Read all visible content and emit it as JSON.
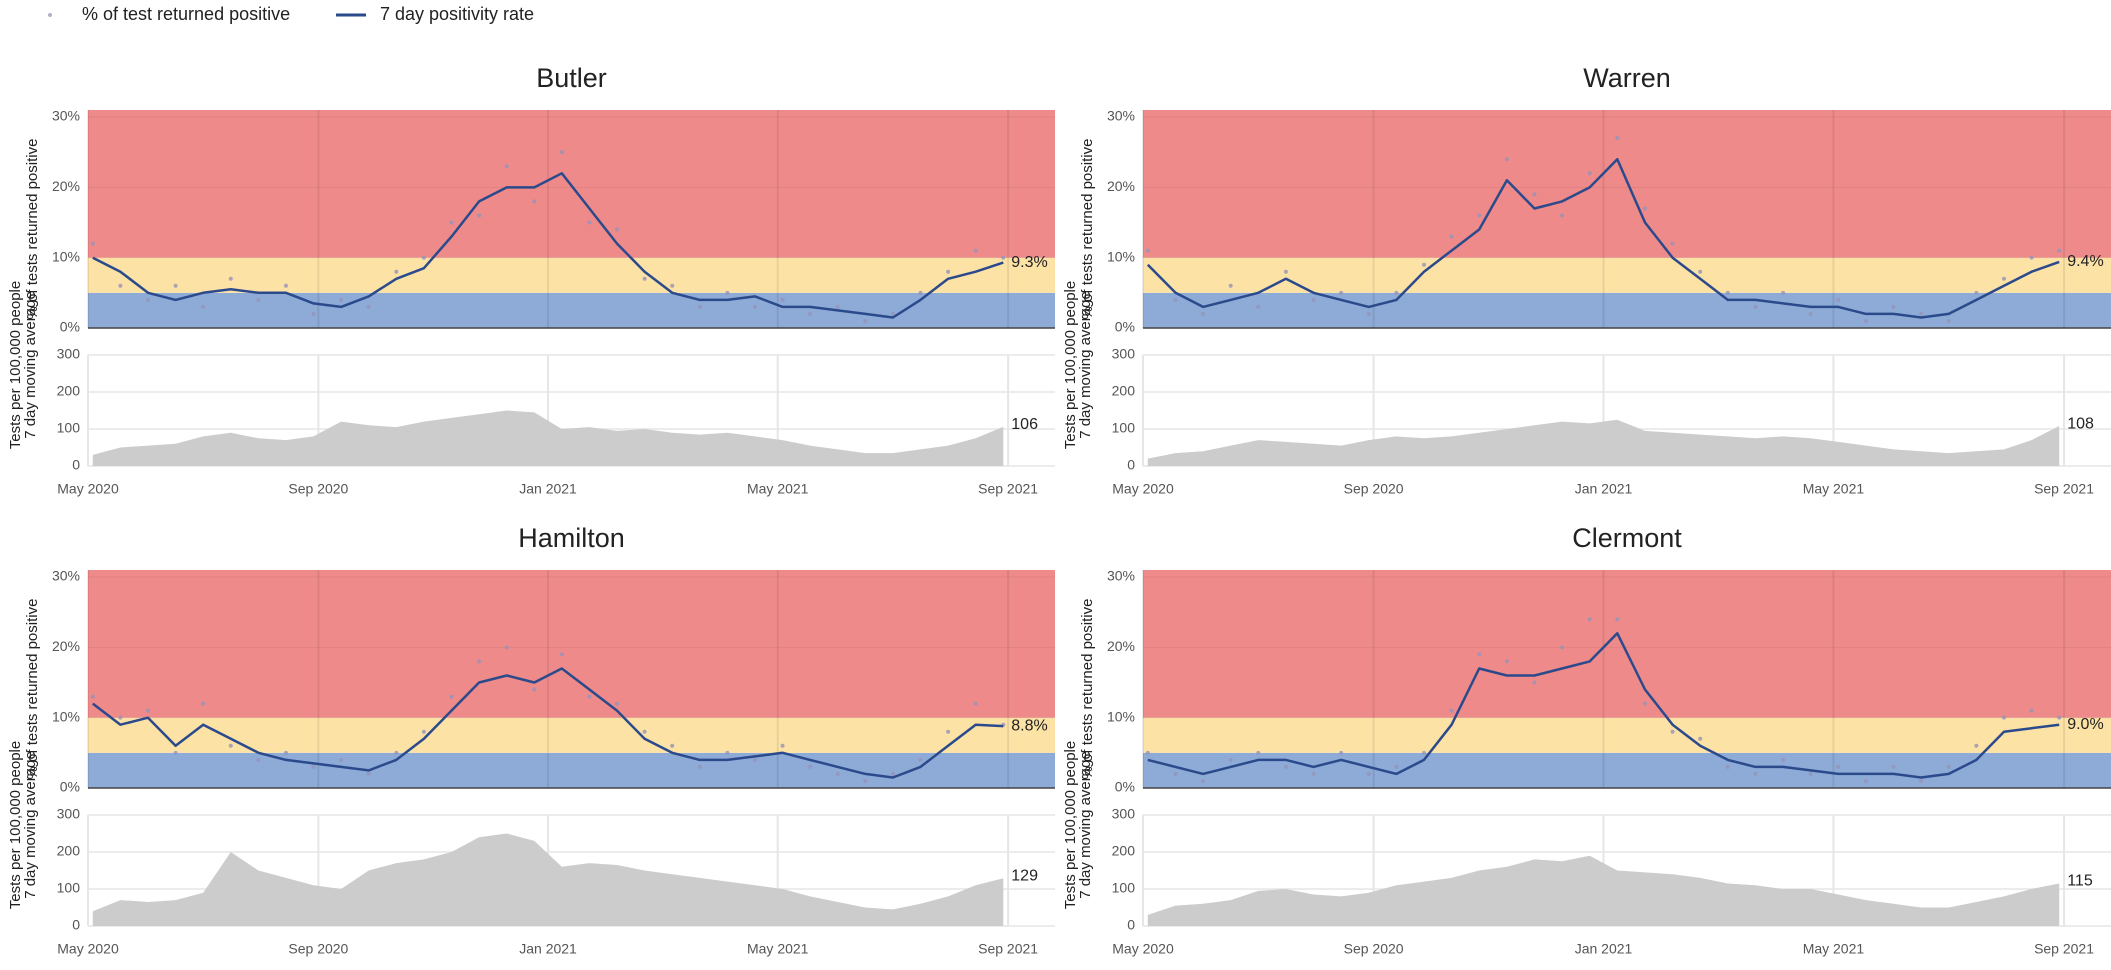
{
  "chart_data": [
    {
      "type": "line",
      "title": "Butler",
      "y_label": "% of tests returned positive",
      "x": [
        2020.34,
        2020.38,
        2020.42,
        2020.46,
        2020.5,
        2020.54,
        2020.58,
        2020.62,
        2020.66,
        2020.7,
        2020.74,
        2020.78,
        2020.82,
        2020.86,
        2020.9,
        2020.94,
        2020.98,
        2021.02,
        2021.06,
        2021.1,
        2021.14,
        2021.18,
        2021.22,
        2021.26,
        2021.3,
        2021.34,
        2021.38,
        2021.42,
        2021.46,
        2021.5,
        2021.54,
        2021.58,
        2021.62,
        2021.66
      ],
      "xlim": [
        2020.333,
        2021.735
      ],
      "xticks": [
        {
          "value": 2020.333,
          "label": "May 2020"
        },
        {
          "value": 2020.667,
          "label": "Sep 2020"
        },
        {
          "value": 2021.0,
          "label": "Jan 2021"
        },
        {
          "value": 2021.333,
          "label": "May 2021"
        },
        {
          "value": 2021.667,
          "label": "Sep 2021"
        }
      ],
      "ylim": [
        0,
        31
      ],
      "yticks": [
        {
          "value": 0,
          "label": "0%"
        },
        {
          "value": 10,
          "label": "10%"
        },
        {
          "value": 20,
          "label": "20%"
        },
        {
          "value": 30,
          "label": "30%"
        }
      ],
      "bands": [
        {
          "from": 0,
          "to": 5,
          "color": "#8eaad6"
        },
        {
          "from": 5,
          "to": 10,
          "color": "#fde2a6"
        },
        {
          "from": 10,
          "to": 31,
          "color": "#ef8a8a"
        }
      ],
      "series": [
        {
          "name": "% of test returned positive",
          "style": "dots",
          "color": "#9494b8",
          "values": [
            12,
            6,
            4,
            6,
            3,
            7,
            4,
            6,
            2,
            4,
            3,
            8,
            10,
            15,
            16,
            23,
            18,
            25,
            15,
            14,
            7,
            6,
            3,
            5,
            3,
            4,
            2,
            3,
            1,
            2,
            5,
            8,
            11,
            10
          ]
        },
        {
          "name": "7 day positivity rate",
          "style": "line",
          "color": "#2b4a8c",
          "values": [
            10,
            8,
            5,
            4,
            5,
            5.5,
            5,
            5,
            3.5,
            3,
            4.5,
            7,
            8.5,
            13,
            18,
            20,
            20,
            22,
            17,
            12,
            8,
            5,
            4,
            4,
            4.5,
            3,
            3,
            2.5,
            2,
            1.5,
            4,
            7,
            8,
            9.3
          ]
        }
      ],
      "end_label": {
        "value": 9.3,
        "label": "9.3%"
      },
      "tests": {
        "label": [
          "Tests per 100,000 people",
          "7 day moving average"
        ],
        "color": "#cccccc",
        "ylim": [
          0,
          300
        ],
        "yticks": [
          0,
          100,
          200,
          300
        ],
        "values": [
          30,
          50,
          55,
          60,
          80,
          90,
          75,
          70,
          80,
          120,
          110,
          105,
          120,
          130,
          140,
          150,
          145,
          100,
          105,
          95,
          100,
          90,
          85,
          90,
          80,
          70,
          55,
          45,
          35,
          35,
          45,
          55,
          75,
          106
        ],
        "end_label": 106
      }
    },
    {
      "type": "line",
      "title": "Warren",
      "y_label": "% of tests returned positive",
      "x": [
        2020.34,
        2020.38,
        2020.42,
        2020.46,
        2020.5,
        2020.54,
        2020.58,
        2020.62,
        2020.66,
        2020.7,
        2020.74,
        2020.78,
        2020.82,
        2020.86,
        2020.9,
        2020.94,
        2020.98,
        2021.02,
        2021.06,
        2021.1,
        2021.14,
        2021.18,
        2021.22,
        2021.26,
        2021.3,
        2021.34,
        2021.38,
        2021.42,
        2021.46,
        2021.5,
        2021.54,
        2021.58,
        2021.62,
        2021.66
      ],
      "xlim": [
        2020.333,
        2021.735
      ],
      "xticks": [
        {
          "value": 2020.333,
          "label": "May 2020"
        },
        {
          "value": 2020.667,
          "label": "Sep 2020"
        },
        {
          "value": 2021.0,
          "label": "Jan 2021"
        },
        {
          "value": 2021.333,
          "label": "May 2021"
        },
        {
          "value": 2021.667,
          "label": "Sep 2021"
        }
      ],
      "ylim": [
        0,
        31
      ],
      "yticks": [
        {
          "value": 0,
          "label": "0%"
        },
        {
          "value": 10,
          "label": "10%"
        },
        {
          "value": 20,
          "label": "20%"
        },
        {
          "value": 30,
          "label": "30%"
        }
      ],
      "bands": [
        {
          "from": 0,
          "to": 5,
          "color": "#8eaad6"
        },
        {
          "from": 5,
          "to": 10,
          "color": "#fde2a6"
        },
        {
          "from": 10,
          "to": 31,
          "color": "#ef8a8a"
        }
      ],
      "series": [
        {
          "style": "dots",
          "color": "#9494b8",
          "values": [
            11,
            4,
            2,
            6,
            3,
            8,
            4,
            5,
            2,
            5,
            9,
            13,
            16,
            24,
            19,
            16,
            22,
            27,
            17,
            12,
            8,
            5,
            3,
            5,
            2,
            4,
            1,
            3,
            2,
            1,
            5,
            7,
            10,
            11
          ]
        },
        {
          "style": "line",
          "color": "#2b4a8c",
          "values": [
            9,
            5,
            3,
            4,
            5,
            7,
            5,
            4,
            3,
            4,
            8,
            11,
            14,
            21,
            17,
            18,
            20,
            24,
            15,
            10,
            7,
            4,
            4,
            3.5,
            3,
            3,
            2,
            2,
            1.5,
            2,
            4,
            6,
            8,
            9.4
          ]
        }
      ],
      "end_label": {
        "value": 9.4,
        "label": "9.4%"
      },
      "tests": {
        "label": [
          "Tests per 100,000 people",
          "7 day moving average"
        ],
        "color": "#cccccc",
        "ylim": [
          0,
          300
        ],
        "yticks": [
          0,
          100,
          200,
          300
        ],
        "values": [
          20,
          35,
          40,
          55,
          70,
          65,
          60,
          55,
          70,
          80,
          75,
          80,
          90,
          100,
          110,
          120,
          115,
          125,
          95,
          90,
          85,
          80,
          75,
          80,
          75,
          65,
          55,
          45,
          40,
          35,
          40,
          45,
          70,
          108
        ],
        "end_label": 108
      }
    },
    {
      "type": "line",
      "title": "Hamilton",
      "y_label": "% of tests returned positive",
      "x": [
        2020.34,
        2020.38,
        2020.42,
        2020.46,
        2020.5,
        2020.54,
        2020.58,
        2020.62,
        2020.66,
        2020.7,
        2020.74,
        2020.78,
        2020.82,
        2020.86,
        2020.9,
        2020.94,
        2020.98,
        2021.02,
        2021.06,
        2021.1,
        2021.14,
        2021.18,
        2021.22,
        2021.26,
        2021.3,
        2021.34,
        2021.38,
        2021.42,
        2021.46,
        2021.5,
        2021.54,
        2021.58,
        2021.62,
        2021.66
      ],
      "xlim": [
        2020.333,
        2021.735
      ],
      "xticks": [
        {
          "value": 2020.333,
          "label": "May 2020"
        },
        {
          "value": 2020.667,
          "label": "Sep 2020"
        },
        {
          "value": 2021.0,
          "label": "Jan 2021"
        },
        {
          "value": 2021.333,
          "label": "May 2021"
        },
        {
          "value": 2021.667,
          "label": "Sep 2021"
        }
      ],
      "ylim": [
        0,
        31
      ],
      "yticks": [
        {
          "value": 0,
          "label": "0%"
        },
        {
          "value": 10,
          "label": "10%"
        },
        {
          "value": 20,
          "label": "20%"
        },
        {
          "value": 30,
          "label": "30%"
        }
      ],
      "bands": [
        {
          "from": 0,
          "to": 5,
          "color": "#8eaad6"
        },
        {
          "from": 5,
          "to": 10,
          "color": "#fde2a6"
        },
        {
          "from": 10,
          "to": 31,
          "color": "#ef8a8a"
        }
      ],
      "series": [
        {
          "style": "dots",
          "color": "#9494b8",
          "values": [
            13,
            10,
            11,
            5,
            12,
            6,
            4,
            5,
            3,
            4,
            2,
            5,
            8,
            13,
            18,
            20,
            14,
            19,
            13,
            12,
            8,
            6,
            3,
            5,
            4,
            6,
            3,
            2,
            1,
            2,
            4,
            8,
            12,
            9
          ]
        },
        {
          "style": "line",
          "color": "#2b4a8c",
          "values": [
            12,
            9,
            10,
            6,
            9,
            7,
            5,
            4,
            3.5,
            3,
            2.5,
            4,
            7,
            11,
            15,
            16,
            15,
            17,
            14,
            11,
            7,
            5,
            4,
            4,
            4.5,
            5,
            4,
            3,
            2,
            1.5,
            3,
            6,
            9,
            8.8
          ]
        }
      ],
      "end_label": {
        "value": 8.8,
        "label": "8.8%"
      },
      "tests": {
        "label": [
          "Tests per 100,000 people",
          "7 day moving average"
        ],
        "color": "#cccccc",
        "ylim": [
          0,
          300
        ],
        "yticks": [
          0,
          100,
          200,
          300
        ],
        "values": [
          40,
          70,
          65,
          70,
          90,
          200,
          150,
          130,
          110,
          100,
          150,
          170,
          180,
          200,
          240,
          250,
          230,
          160,
          170,
          165,
          150,
          140,
          130,
          120,
          110,
          100,
          80,
          65,
          50,
          45,
          60,
          80,
          110,
          129
        ],
        "end_label": 129
      }
    },
    {
      "type": "line",
      "title": "Clermont",
      "y_label": "% of tests returned positive",
      "x": [
        2020.34,
        2020.38,
        2020.42,
        2020.46,
        2020.5,
        2020.54,
        2020.58,
        2020.62,
        2020.66,
        2020.7,
        2020.74,
        2020.78,
        2020.82,
        2020.86,
        2020.9,
        2020.94,
        2020.98,
        2021.02,
        2021.06,
        2021.1,
        2021.14,
        2021.18,
        2021.22,
        2021.26,
        2021.3,
        2021.34,
        2021.38,
        2021.42,
        2021.46,
        2021.5,
        2021.54,
        2021.58,
        2021.62,
        2021.66
      ],
      "xlim": [
        2020.333,
        2021.735
      ],
      "xticks": [
        {
          "value": 2020.333,
          "label": "May 2020"
        },
        {
          "value": 2020.667,
          "label": "Sep 2020"
        },
        {
          "value": 2021.0,
          "label": "Jan 2021"
        },
        {
          "value": 2021.333,
          "label": "May 2021"
        },
        {
          "value": 2021.667,
          "label": "Sep 2021"
        }
      ],
      "ylim": [
        0,
        31
      ],
      "yticks": [
        {
          "value": 0,
          "label": "0%"
        },
        {
          "value": 10,
          "label": "10%"
        },
        {
          "value": 20,
          "label": "20%"
        },
        {
          "value": 30,
          "label": "30%"
        }
      ],
      "bands": [
        {
          "from": 0,
          "to": 5,
          "color": "#8eaad6"
        },
        {
          "from": 5,
          "to": 10,
          "color": "#fde2a6"
        },
        {
          "from": 10,
          "to": 31,
          "color": "#ef8a8a"
        }
      ],
      "series": [
        {
          "style": "dots",
          "color": "#9494b8",
          "values": [
            5,
            2,
            1,
            4,
            5,
            3,
            2,
            5,
            2,
            3,
            5,
            11,
            19,
            18,
            15,
            20,
            24,
            24,
            12,
            8,
            7,
            3,
            2,
            4,
            2,
            3,
            1,
            3,
            1,
            3,
            6,
            10,
            11,
            10
          ]
        },
        {
          "style": "line",
          "color": "#2b4a8c",
          "values": [
            4,
            3,
            2,
            3,
            4,
            4,
            3,
            4,
            3,
            2,
            4,
            9,
            17,
            16,
            16,
            17,
            18,
            22,
            14,
            9,
            6,
            4,
            3,
            3,
            2.5,
            2,
            2,
            2,
            1.5,
            2,
            4,
            8,
            8.5,
            9.0
          ]
        }
      ],
      "end_label": {
        "value": 9.0,
        "label": "9.0%"
      },
      "tests": {
        "label": [
          "Tests per 100,000 people",
          "7 day moving average"
        ],
        "color": "#cccccc",
        "ylim": [
          0,
          300
        ],
        "yticks": [
          0,
          100,
          200,
          300
        ],
        "values": [
          30,
          55,
          60,
          70,
          95,
          100,
          85,
          80,
          90,
          110,
          120,
          130,
          150,
          160,
          180,
          175,
          190,
          150,
          145,
          140,
          130,
          115,
          110,
          100,
          100,
          85,
          70,
          60,
          50,
          50,
          65,
          80,
          100,
          115
        ],
        "end_label": 115
      }
    }
  ]
}
